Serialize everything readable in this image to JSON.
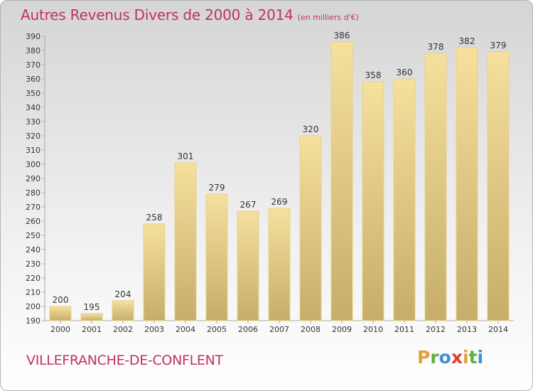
{
  "title": "Autres Revenus Divers de 2000 à 2014",
  "unit": "(en milliers d'€)",
  "commune": "VILLEFRANCHE-DE-CONFLENT",
  "logo": {
    "letters": [
      "P",
      "r",
      "o",
      "x",
      "i",
      "t",
      "i"
    ],
    "colors": [
      "#e3a13b",
      "#5fae3f",
      "#3f8fd2",
      "#e0402a",
      "#e3a13b",
      "#5fae3f",
      "#3f8fd2"
    ]
  },
  "colors": {
    "bar_light": "#f6e09d",
    "bar_dark": "#c6ad6a",
    "bar_edge": "#e9d18a",
    "accent": "#c0306a"
  },
  "chart_data": {
    "type": "bar",
    "title": "Autres Revenus Divers de 2000 à 2014",
    "subtitle": "(en milliers d'€)",
    "categories": [
      "2000",
      "2001",
      "2002",
      "2003",
      "2004",
      "2005",
      "2006",
      "2007",
      "2008",
      "2009",
      "2010",
      "2011",
      "2012",
      "2013",
      "2014"
    ],
    "values": [
      200,
      195,
      204,
      258,
      301,
      279,
      267,
      269,
      320,
      386,
      358,
      360,
      378,
      382,
      379
    ],
    "ylim": [
      190,
      390
    ],
    "yticks": [
      190,
      200,
      210,
      220,
      230,
      240,
      250,
      260,
      270,
      280,
      290,
      300,
      310,
      320,
      330,
      340,
      350,
      360,
      370,
      380,
      390
    ],
    "grid": false,
    "data_labels": true
  }
}
